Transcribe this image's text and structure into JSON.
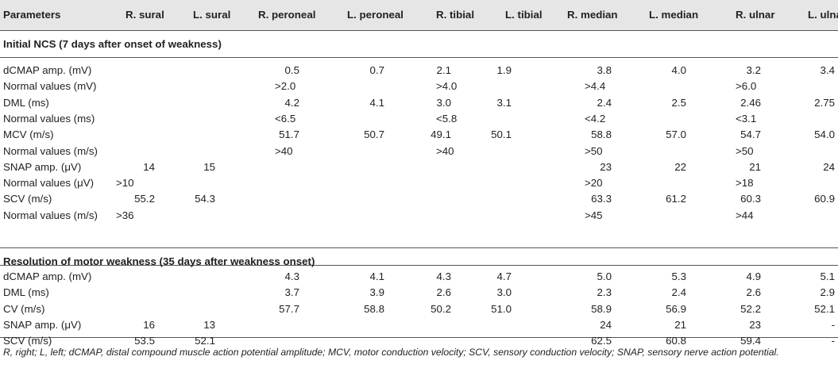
{
  "table": {
    "headers": [
      "Parameters",
      "R. sural",
      "L. sural",
      "R. peroneal",
      "L. peroneal",
      "R. tibial",
      "L. tibial",
      "R. median",
      "L. median",
      "R. ulnar",
      "L. ulnar"
    ],
    "sections": [
      {
        "title": "Initial NCS (7 days after onset of weakness)",
        "rows": [
          {
            "label": "dCMAP amp. (mV)",
            "values": [
              "",
              "",
              "0.5",
              "0.7",
              "2.1",
              "1.9",
              "3.8",
              "4.0",
              "3.2",
              "3.4"
            ]
          },
          {
            "label": "Normal values (mV)",
            "values": [
              "",
              "",
              ">2.0",
              "",
              ">4.0",
              "",
              ">4.4",
              "",
              ">6.0",
              ""
            ]
          },
          {
            "label": "DML (ms)",
            "values": [
              "",
              "",
              "4.2",
              "4.1",
              "3.0",
              "3.1",
              "2.4",
              "2.5",
              "2.46",
              "2.75"
            ]
          },
          {
            "label": "Normal values (ms)",
            "values": [
              "",
              "",
              "<6.5",
              "",
              "<5.8",
              "",
              "<4.2",
              "",
              "<3.1",
              ""
            ]
          },
          {
            "label": "MCV (m/s)",
            "values": [
              "",
              "",
              "51.7",
              "50.7",
              "49.1",
              "50.1",
              "58.8",
              "57.0",
              "54.7",
              "54.0"
            ]
          },
          {
            "label": "Normal values (m/s)",
            "values": [
              "",
              "",
              ">40",
              "",
              ">40",
              "",
              ">50",
              "",
              ">50",
              ""
            ]
          },
          {
            "label": "SNAP amp. (μV)",
            "values": [
              "14",
              "15",
              "",
              "",
              "",
              "",
              "23",
              "22",
              "21",
              "24"
            ]
          },
          {
            "label": "Normal values (μV)",
            "values": [
              ">10",
              "",
              "",
              "",
              "",
              "",
              ">20",
              "",
              ">18",
              ""
            ]
          },
          {
            "label": "SCV (m/s)",
            "values": [
              "55.2",
              "54.3",
              "",
              "",
              "",
              "",
              "63.3",
              "61.2",
              "60.3",
              "60.9"
            ]
          },
          {
            "label": "Normal values (m/s)",
            "values": [
              ">36",
              "",
              "",
              "",
              "",
              "",
              ">45",
              "",
              ">44",
              ""
            ]
          }
        ]
      },
      {
        "title": "Resolution of motor weakness (35 days after weakness onset)",
        "rows": [
          {
            "label": "dCMAP amp. (mV)",
            "values": [
              "",
              "",
              "4.3",
              "4.1",
              "4.3",
              "4.7",
              "5.0",
              "5.3",
              "4.9",
              "5.1"
            ]
          },
          {
            "label": "DML (ms)",
            "values": [
              "",
              "",
              "3.7",
              "3.9",
              "2.6",
              "3.0",
              "2.3",
              "2.4",
              "2.6",
              "2.9"
            ]
          },
          {
            "label": "CV (m/s)",
            "values": [
              "",
              "",
              "57.7",
              "58.8",
              "50.2",
              "51.0",
              "58.9",
              "56.9",
              "52.2",
              "52.1"
            ]
          },
          {
            "label": "SNAP amp. (μV)",
            "values": [
              "16",
              "13",
              "",
              "",
              "",
              "",
              "24",
              "21",
              "23",
              "-"
            ]
          },
          {
            "label": "SCV (m/s)",
            "values": [
              "53.5",
              "52.1",
              "",
              "",
              "",
              "",
              "62.5",
              "60.8",
              "59.4",
              "-"
            ]
          }
        ]
      }
    ]
  },
  "footnote": "R, right; L, left; dCMAP, distal compound muscle action potential amplitude; MCV, motor conduction velocity; SCV, sensory conduction velocity; SNAP, sensory nerve action potential."
}
